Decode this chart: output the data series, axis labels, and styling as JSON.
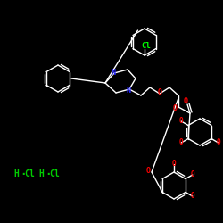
{
  "background_color": "#000000",
  "cl_color": "#00ff00",
  "n_color": "#2222ff",
  "o_color": "#ff0000",
  "bond_color": "#ffffff",
  "hcl_color": "#00cc00",
  "cl_label": "Cl",
  "n1_label": "N",
  "n2_label": "N",
  "figsize": [
    2.5,
    2.5
  ],
  "dpi": 100
}
